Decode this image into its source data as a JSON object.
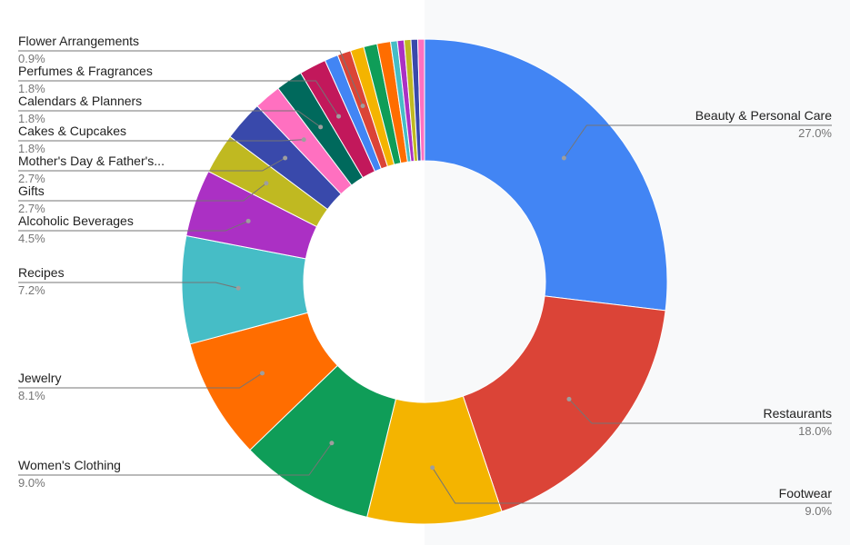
{
  "chart_data": {
    "type": "pie",
    "donut": true,
    "title": "",
    "slices": [
      {
        "label": "Beauty & Personal Care",
        "value": 27.0,
        "value_label": "27.0%",
        "color": "#4285f4",
        "labeled": true
      },
      {
        "label": "Restaurants",
        "value": 18.0,
        "value_label": "18.0%",
        "color": "#db4437",
        "labeled": true
      },
      {
        "label": "Footwear",
        "value": 9.0,
        "value_label": "9.0%",
        "color": "#f4b400",
        "labeled": true
      },
      {
        "label": "Women's Clothing",
        "value": 9.0,
        "value_label": "9.0%",
        "color": "#0f9d58",
        "labeled": true
      },
      {
        "label": "Jewelry",
        "value": 8.1,
        "value_label": "8.1%",
        "color": "#ff6d00",
        "labeled": true
      },
      {
        "label": "Recipes",
        "value": 7.2,
        "value_label": "7.2%",
        "color": "#46bdc6",
        "labeled": true
      },
      {
        "label": "Alcoholic Beverages",
        "value": 4.5,
        "value_label": "4.5%",
        "color": "#ab30c4",
        "labeled": true
      },
      {
        "label": "Gifts",
        "value": 2.7,
        "value_label": "2.7%",
        "color": "#c0b921",
        "labeled": true
      },
      {
        "label": "Mother's Day & Father's...",
        "value": 2.7,
        "value_label": "2.7%",
        "color": "#3949ab",
        "labeled": true
      },
      {
        "label": "Cakes & Cupcakes",
        "value": 1.8,
        "value_label": "1.8%",
        "color": "#ff70c0",
        "labeled": true
      },
      {
        "label": "Calendars & Planners",
        "value": 1.8,
        "value_label": "1.8%",
        "color": "#00695c",
        "labeled": true
      },
      {
        "label": "Perfumes & Fragrances",
        "value": 1.8,
        "value_label": "1.8%",
        "color": "#c2185b",
        "labeled": true
      },
      {
        "label": "",
        "value": 0.9,
        "color": "#4285f4",
        "labeled": false
      },
      {
        "label": "Flower Arrangements",
        "value": 0.9,
        "value_label": "0.9%",
        "color": "#db4437",
        "labeled": true
      },
      {
        "label": "",
        "value": 0.9,
        "color": "#f4b400",
        "labeled": false
      },
      {
        "label": "",
        "value": 0.9,
        "color": "#0f9d58",
        "labeled": false
      },
      {
        "label": "",
        "value": 0.9,
        "color": "#ff6d00",
        "labeled": false
      },
      {
        "label": "",
        "value": 0.45,
        "color": "#46bdc6",
        "labeled": false
      },
      {
        "label": "",
        "value": 0.45,
        "color": "#ab30c4",
        "labeled": false
      },
      {
        "label": "",
        "value": 0.45,
        "color": "#c0b921",
        "labeled": false
      },
      {
        "label": "",
        "value": 0.45,
        "color": "#3949ab",
        "labeled": false
      },
      {
        "label": "",
        "value": 0.45,
        "color": "#ff70c0",
        "labeled": false
      }
    ]
  }
}
